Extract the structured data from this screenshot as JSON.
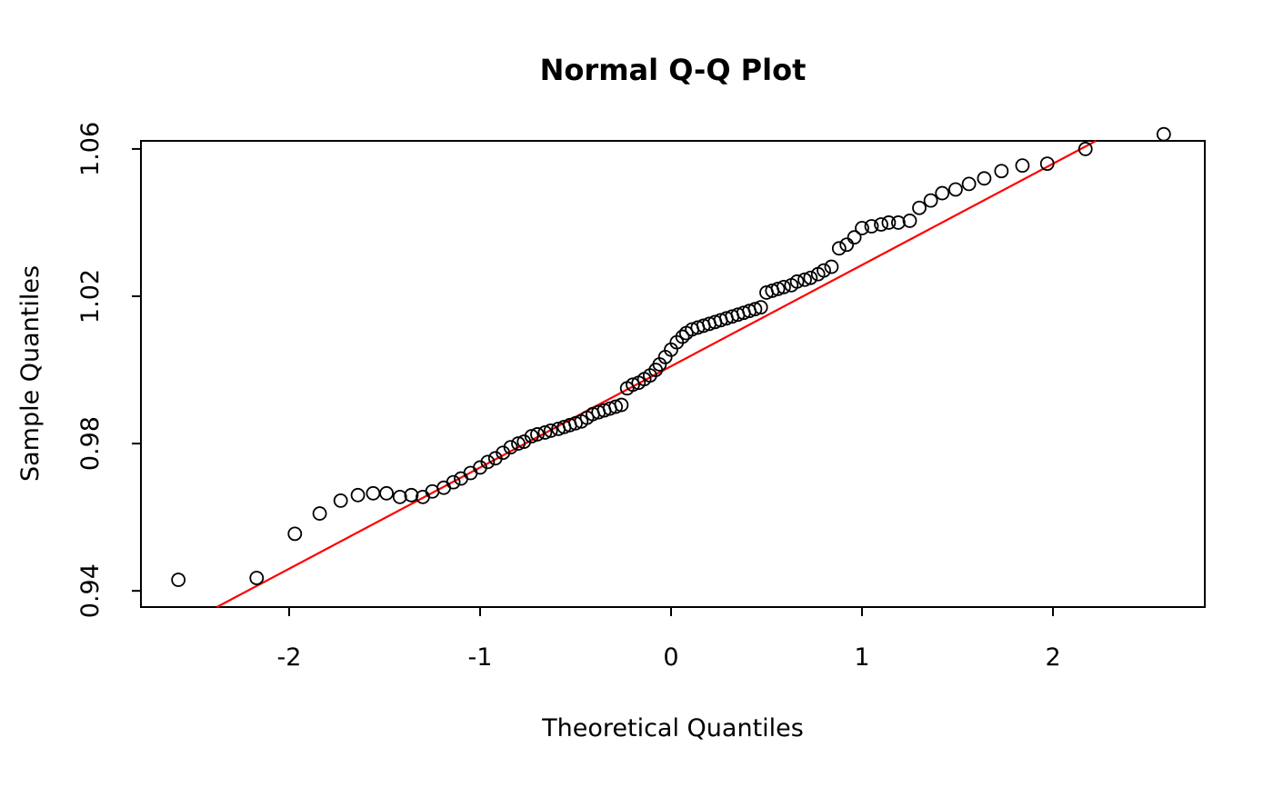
{
  "chart_data": {
    "type": "scatter",
    "title": "Normal Q-Q Plot",
    "xlabel": "Theoretical Quantiles",
    "ylabel": "Sample Quantiles",
    "x_ticks": [
      -2,
      -1,
      0,
      1,
      2
    ],
    "y_ticks": [
      0.94,
      0.98,
      1.02,
      1.06
    ],
    "xlim": [
      -2.776,
      2.795
    ],
    "ylim": [
      0.9356,
      1.0622
    ],
    "grid": false,
    "legend": "none",
    "point_style": {
      "shape": "open-circle",
      "color": "#000000"
    },
    "reference_line": {
      "type": "qqline",
      "slope": 0.0275,
      "intercept": 1.001,
      "color": "#ff0000"
    },
    "points": [
      [
        -2.58,
        0.943
      ],
      [
        -2.17,
        0.9435
      ],
      [
        -1.97,
        0.9555
      ],
      [
        -1.84,
        0.961
      ],
      [
        -1.73,
        0.9645
      ],
      [
        -1.64,
        0.966
      ],
      [
        -1.56,
        0.9665
      ],
      [
        -1.49,
        0.9665
      ],
      [
        -1.42,
        0.9655
      ],
      [
        -1.36,
        0.966
      ],
      [
        -1.3,
        0.9655
      ],
      [
        -1.25,
        0.967
      ],
      [
        -1.19,
        0.968
      ],
      [
        -1.14,
        0.9695
      ],
      [
        -1.1,
        0.9705
      ],
      [
        -1.05,
        0.972
      ],
      [
        -1.0,
        0.9735
      ],
      [
        -0.96,
        0.975
      ],
      [
        -0.92,
        0.976
      ],
      [
        -0.88,
        0.9775
      ],
      [
        -0.84,
        0.979
      ],
      [
        -0.8,
        0.98
      ],
      [
        -0.77,
        0.9805
      ],
      [
        -0.73,
        0.982
      ],
      [
        -0.7,
        0.9825
      ],
      [
        -0.66,
        0.983
      ],
      [
        -0.63,
        0.9835
      ],
      [
        -0.59,
        0.984
      ],
      [
        -0.56,
        0.9845
      ],
      [
        -0.53,
        0.985
      ],
      [
        -0.5,
        0.9855
      ],
      [
        -0.47,
        0.986
      ],
      [
        -0.44,
        0.987
      ],
      [
        -0.41,
        0.988
      ],
      [
        -0.38,
        0.9885
      ],
      [
        -0.35,
        0.989
      ],
      [
        -0.32,
        0.9895
      ],
      [
        -0.29,
        0.99
      ],
      [
        -0.26,
        0.9905
      ],
      [
        -0.23,
        0.995
      ],
      [
        -0.2,
        0.996
      ],
      [
        -0.17,
        0.9965
      ],
      [
        -0.14,
        0.9975
      ],
      [
        -0.11,
        0.9985
      ],
      [
        -0.08,
        1.0
      ],
      [
        -0.06,
        1.0015
      ],
      [
        -0.03,
        1.0035
      ],
      [
        0.0,
        1.0055
      ],
      [
        0.03,
        1.0075
      ],
      [
        0.06,
        1.009
      ],
      [
        0.08,
        1.01
      ],
      [
        0.11,
        1.011
      ],
      [
        0.14,
        1.0115
      ],
      [
        0.17,
        1.012
      ],
      [
        0.2,
        1.0125
      ],
      [
        0.23,
        1.013
      ],
      [
        0.26,
        1.0135
      ],
      [
        0.29,
        1.014
      ],
      [
        0.32,
        1.0145
      ],
      [
        0.35,
        1.015
      ],
      [
        0.38,
        1.0155
      ],
      [
        0.41,
        1.016
      ],
      [
        0.44,
        1.0165
      ],
      [
        0.47,
        1.017
      ],
      [
        0.5,
        1.021
      ],
      [
        0.53,
        1.0215
      ],
      [
        0.56,
        1.022
      ],
      [
        0.59,
        1.0225
      ],
      [
        0.63,
        1.023
      ],
      [
        0.66,
        1.024
      ],
      [
        0.7,
        1.0245
      ],
      [
        0.73,
        1.025
      ],
      [
        0.77,
        1.026
      ],
      [
        0.8,
        1.027
      ],
      [
        0.84,
        1.028
      ],
      [
        0.88,
        1.033
      ],
      [
        0.92,
        1.034
      ],
      [
        0.96,
        1.036
      ],
      [
        1.0,
        1.0385
      ],
      [
        1.05,
        1.039
      ],
      [
        1.1,
        1.0395
      ],
      [
        1.14,
        1.04
      ],
      [
        1.19,
        1.04
      ],
      [
        1.25,
        1.0405
      ],
      [
        1.3,
        1.044
      ],
      [
        1.36,
        1.046
      ],
      [
        1.42,
        1.048
      ],
      [
        1.49,
        1.049
      ],
      [
        1.56,
        1.0505
      ],
      [
        1.64,
        1.052
      ],
      [
        1.73,
        1.054
      ],
      [
        1.84,
        1.0555
      ],
      [
        1.97,
        1.056
      ],
      [
        2.17,
        1.06
      ],
      [
        2.58,
        1.064
      ]
    ]
  }
}
